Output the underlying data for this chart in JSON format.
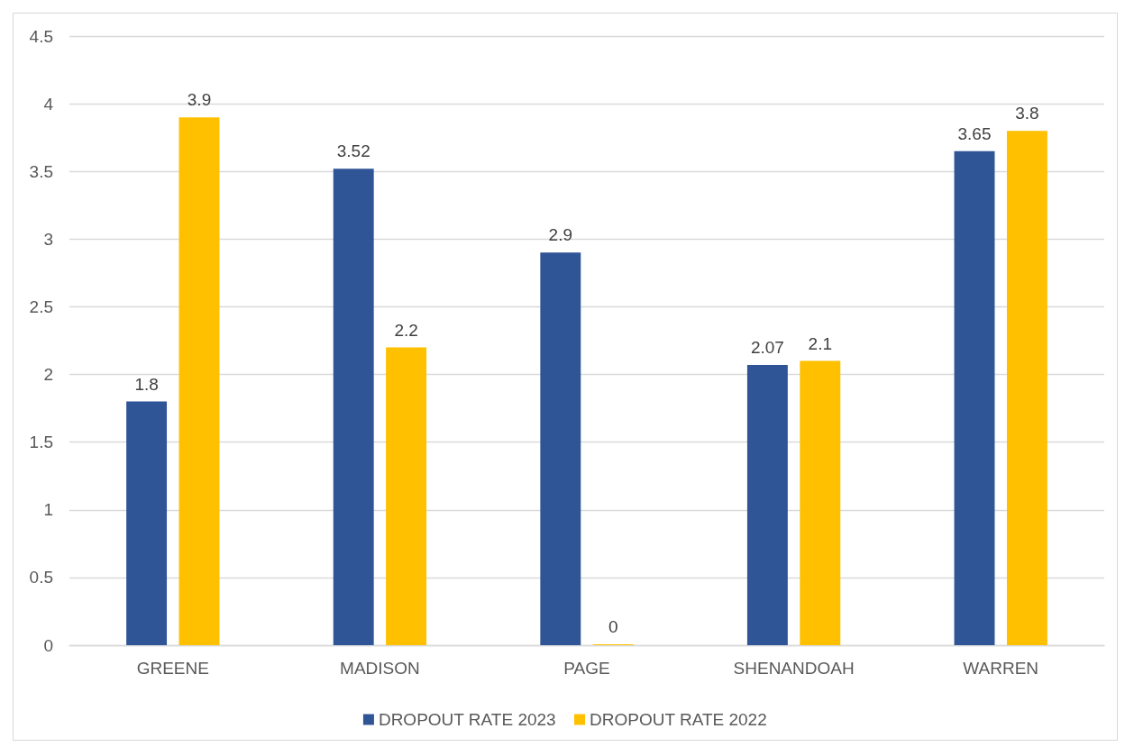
{
  "chart_data": {
    "type": "bar",
    "categories": [
      "GREENE",
      "MADISON",
      "PAGE",
      "SHENANDOAH",
      "WARREN"
    ],
    "series": [
      {
        "name": "DROPOUT RATE 2023",
        "color": "#2f5597",
        "values": [
          1.8,
          3.52,
          2.9,
          2.07,
          3.65
        ]
      },
      {
        "name": "DROPOUT RATE 2022",
        "color": "#ffc000",
        "values": [
          3.9,
          2.2,
          0,
          2.1,
          3.8
        ]
      }
    ],
    "ylim": [
      0,
      4.5
    ],
    "yticks": [
      0,
      0.5,
      1,
      1.5,
      2,
      2.5,
      3,
      3.5,
      4,
      4.5
    ],
    "grid": "y",
    "legend": "bottom",
    "data_labels": true
  }
}
